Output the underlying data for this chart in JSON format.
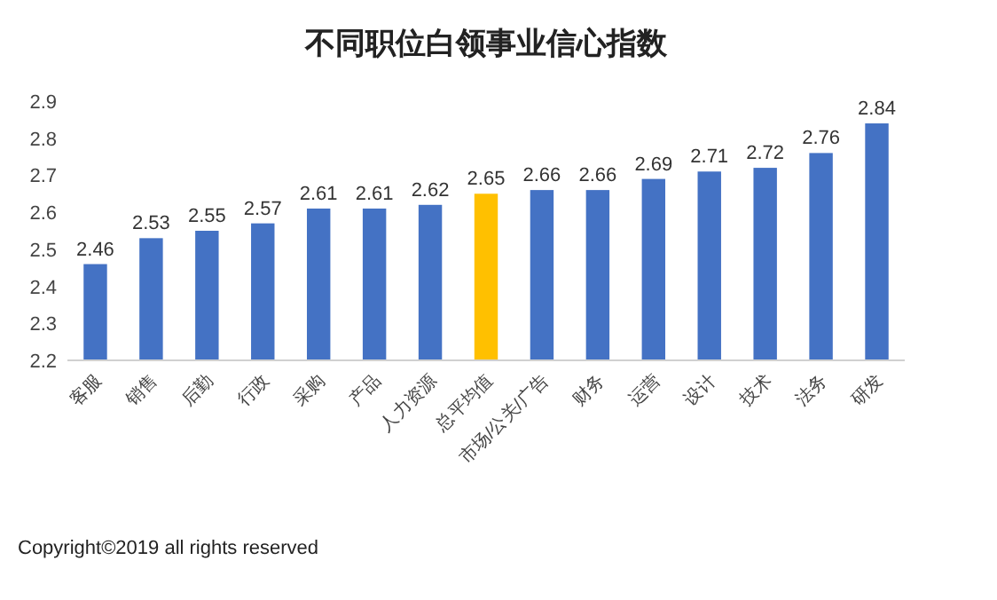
{
  "chart_data": {
    "type": "bar",
    "title": "不同职位白领事业信心指数",
    "categories": [
      "客服",
      "销售",
      "后勤",
      "行政",
      "采购",
      "产品",
      "人力资源",
      "总平均值",
      "市场/公关/广告",
      "财务",
      "运营",
      "设计",
      "技术",
      "法务",
      "研发"
    ],
    "values": [
      2.46,
      2.53,
      2.55,
      2.57,
      2.61,
      2.61,
      2.62,
      2.65,
      2.66,
      2.66,
      2.69,
      2.71,
      2.72,
      2.76,
      2.84
    ],
    "colors": [
      "#4472c4",
      "#4472c4",
      "#4472c4",
      "#4472c4",
      "#4472c4",
      "#4472c4",
      "#4472c4",
      "#ffc000",
      "#4472c4",
      "#4472c4",
      "#4472c4",
      "#4472c4",
      "#4472c4",
      "#4472c4",
      "#4472c4"
    ],
    "ylim": [
      2.2,
      2.9
    ],
    "yticks": [
      2.2,
      2.3,
      2.4,
      2.5,
      2.6,
      2.7,
      2.8,
      2.9
    ],
    "data_labels": true,
    "annotations": [
      "Copyright©2019 all rights reserved"
    ]
  }
}
